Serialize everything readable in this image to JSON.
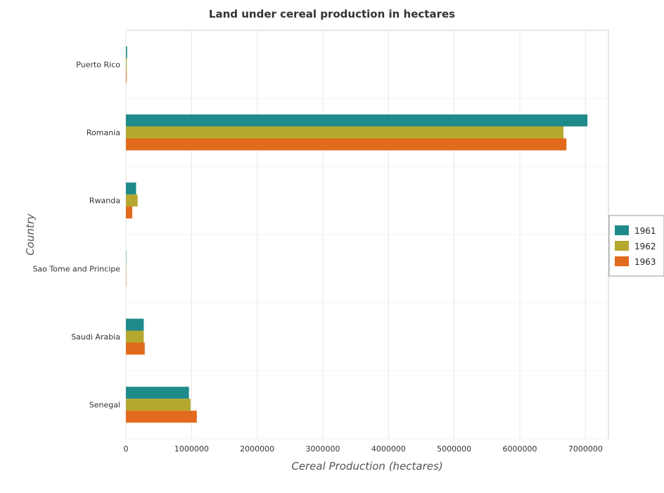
{
  "chart_data": {
    "type": "bar",
    "orientation": "horizontal",
    "title": "Land under cereal production in hectares",
    "xlabel": "Cereal Production (hectares)",
    "ylabel": "Country",
    "categories": [
      "Puerto Rico",
      "Romania",
      "Rwanda",
      "Sao Tome and Principe",
      "Saudi Arabia",
      "Senegal"
    ],
    "series": [
      {
        "name": "1961",
        "color": "#1f8a8a",
        "values": [
          18000,
          7030000,
          155000,
          500,
          272000,
          960000
        ]
      },
      {
        "name": "1962",
        "color": "#b5a82e",
        "values": [
          12000,
          6665000,
          178000,
          500,
          272000,
          985000
        ]
      },
      {
        "name": "1963",
        "color": "#e26a1c",
        "values": [
          10000,
          6710000,
          97000,
          500,
          287000,
          1080000
        ]
      }
    ],
    "xlim": [
      0,
      7350000
    ],
    "xticks": [
      0,
      1000000,
      2000000,
      3000000,
      4000000,
      5000000,
      6000000,
      7000000
    ],
    "xtick_labels": [
      "0",
      "1000000",
      "2000000",
      "3000000",
      "4000000",
      "5000000",
      "6000000",
      "7000000"
    ],
    "grid": true,
    "legend_position": "right"
  }
}
